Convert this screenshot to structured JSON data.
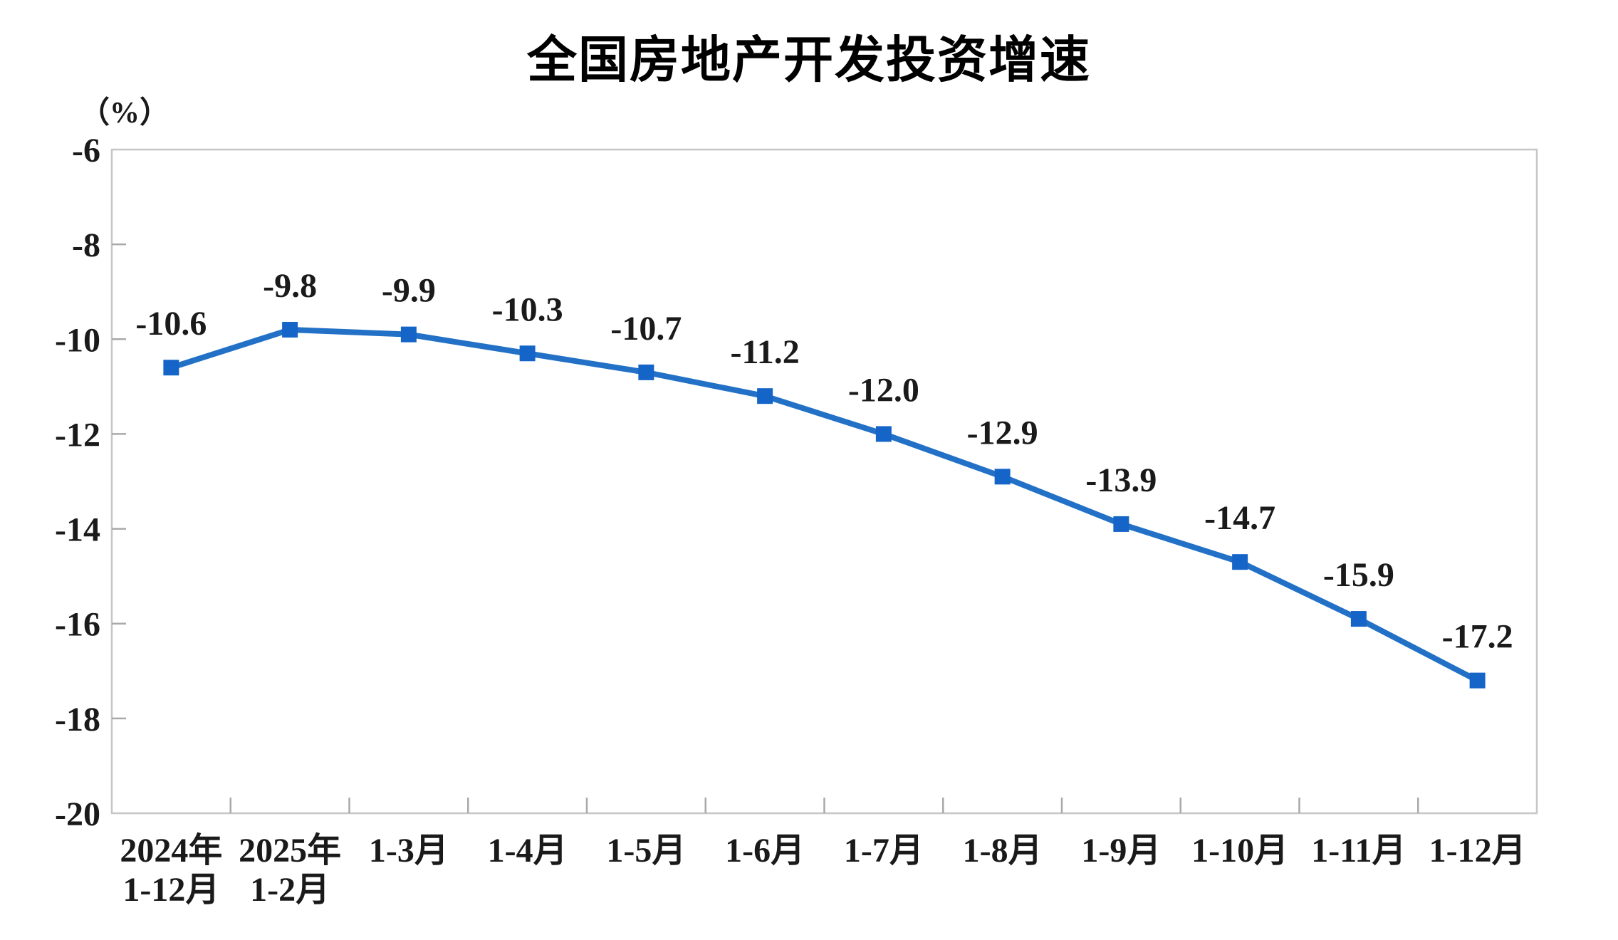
{
  "page": {
    "background": "#ffffff"
  },
  "header": {
    "title": "全国房地产开发投资增速"
  },
  "y_axis": {
    "unit_label": "（%）"
  },
  "colors": {
    "line": "#2271C7",
    "marker": "#1564C8",
    "axis_border": "#C6C6C6",
    "tick": "#A9A9A9",
    "text": "#1A1A1A"
  },
  "chart_data": {
    "type": "line",
    "title": "全国房地产开发投资增速",
    "unit": "（%）",
    "categories": [
      "2024年\n1-12月",
      "2025年\n1-2月",
      "1-3月",
      "1-4月",
      "1-5月",
      "1-6月",
      "1-7月",
      "1-8月",
      "1-9月",
      "1-10月",
      "1-11月",
      "1-12月"
    ],
    "values": [
      -10.6,
      -9.8,
      -9.9,
      -10.3,
      -10.7,
      -11.2,
      -12.0,
      -12.9,
      -13.9,
      -14.7,
      -15.9,
      -17.2
    ],
    "data_labels": [
      "-10.6",
      "-9.8",
      "-9.9",
      "-10.3",
      "-10.7",
      "-11.2",
      "-12.0",
      "-12.9",
      "-13.9",
      "-14.7",
      "-15.9",
      "-17.2"
    ],
    "ylim": [
      -20,
      -6
    ],
    "y_ticks": [
      -6,
      -8,
      -10,
      -12,
      -14,
      -16,
      -18,
      -20
    ],
    "grid": false,
    "legend": "none",
    "marker_shape": "square",
    "xlabel": "",
    "ylabel": ""
  }
}
